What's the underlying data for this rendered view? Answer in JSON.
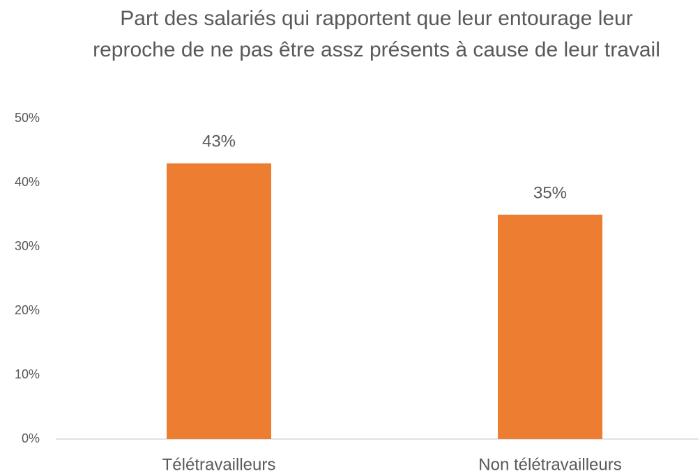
{
  "chart_data": {
    "type": "bar",
    "title": "Part des salariés qui rapportent que leur entourage leur reproche de ne pas être assz présents à cause de leur travail",
    "categories": [
      "Télétravailleurs",
      "Non télétravailleurs"
    ],
    "values": [
      43,
      35
    ],
    "value_labels": [
      "43%",
      "35%"
    ],
    "color": "#ed7d31",
    "ylim": [
      0,
      50
    ],
    "yticks": [
      {
        "value": 0,
        "label": "0%"
      },
      {
        "value": 10,
        "label": "10%"
      },
      {
        "value": 20,
        "label": "20%"
      },
      {
        "value": 30,
        "label": "30%"
      },
      {
        "value": 40,
        "label": "40%"
      },
      {
        "value": 50,
        "label": "50%"
      }
    ],
    "grid": false
  }
}
